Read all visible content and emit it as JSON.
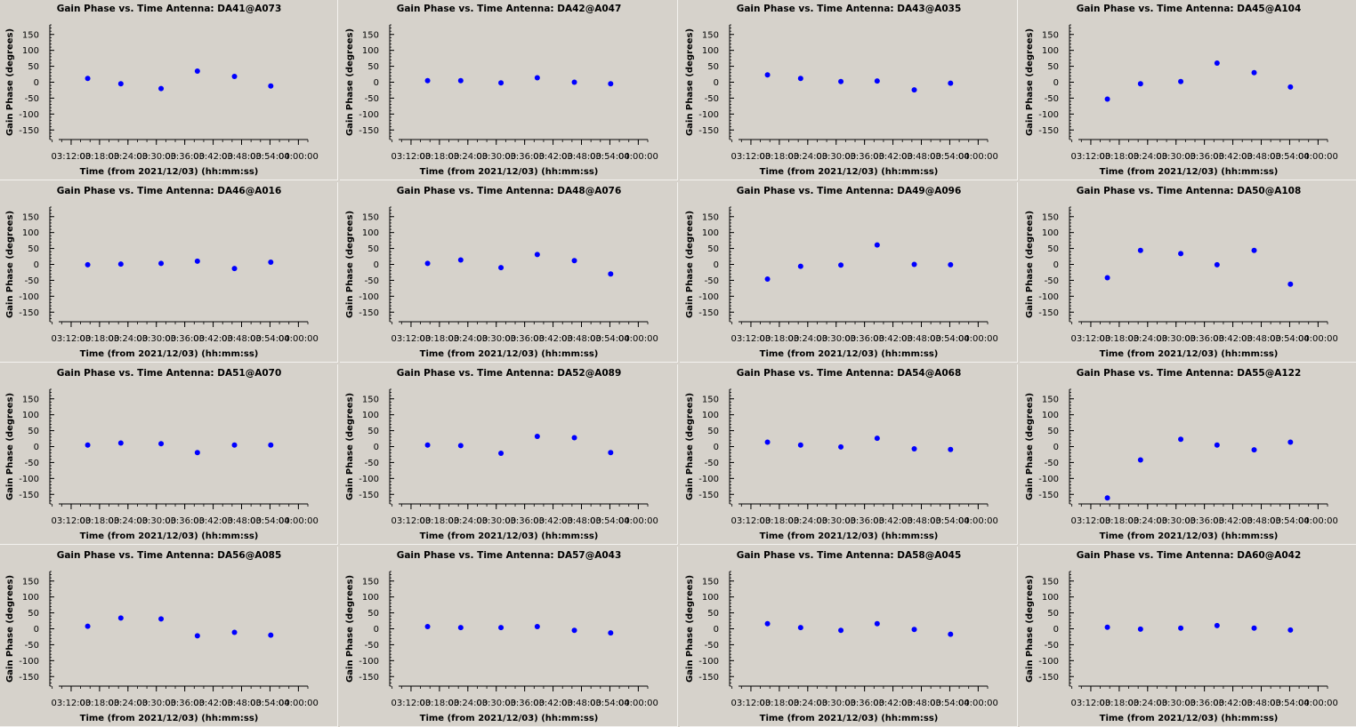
{
  "chart_data": [
    {
      "type": "scatter",
      "title": "Gain Phase vs. Time Antenna: DA41@A073",
      "xlabel": "Time (from 2021/12/03) (hh:mm:ss)",
      "ylabel": "Gain Phase (degrees)",
      "ylim": [
        -180,
        180
      ],
      "yticks": [
        150,
        100,
        50,
        0,
        -50,
        -100,
        -150
      ],
      "xlim": [
        "03:07:30",
        "04:02:00"
      ],
      "xticks": [
        "03:12:00",
        "03:18:00",
        "03:24:00",
        "03:30:00",
        "03:36:00",
        "03:42:00",
        "03:48:00",
        "03:54:00",
        "04:00:00"
      ],
      "grid": false,
      "marker_color": "#0000ff",
      "x": [
        "03:15:30",
        "03:22:30",
        "03:31:00",
        "03:38:40",
        "03:46:30",
        "03:54:10"
      ],
      "y": [
        12,
        -5,
        -20,
        35,
        18,
        -12
      ]
    },
    {
      "type": "scatter",
      "title": "Gain Phase vs. Time Antenna: DA42@A047",
      "xlabel": "Time (from 2021/12/03) (hh:mm:ss)",
      "ylabel": "Gain Phase (degrees)",
      "ylim": [
        -180,
        180
      ],
      "yticks": [
        150,
        100,
        50,
        0,
        -50,
        -100,
        -150
      ],
      "xlim": [
        "03:07:30",
        "04:02:00"
      ],
      "xticks": [
        "03:12:00",
        "03:18:00",
        "03:24:00",
        "03:30:00",
        "03:36:00",
        "03:42:00",
        "03:48:00",
        "03:54:00",
        "04:00:00"
      ],
      "grid": false,
      "marker_color": "#0000ff",
      "x": [
        "03:15:30",
        "03:22:30",
        "03:31:00",
        "03:38:40",
        "03:46:30",
        "03:54:10"
      ],
      "y": [
        5,
        5,
        -2,
        14,
        0,
        -5
      ]
    },
    {
      "type": "scatter",
      "title": "Gain Phase vs. Time Antenna: DA43@A035",
      "xlabel": "Time (from 2021/12/03) (hh:mm:ss)",
      "ylabel": "Gain Phase (degrees)",
      "ylim": [
        -180,
        180
      ],
      "yticks": [
        150,
        100,
        50,
        0,
        -50,
        -100,
        -150
      ],
      "xlim": [
        "03:07:30",
        "04:02:00"
      ],
      "xticks": [
        "03:12:00",
        "03:18:00",
        "03:24:00",
        "03:30:00",
        "03:36:00",
        "03:42:00",
        "03:48:00",
        "03:54:00",
        "04:00:00"
      ],
      "grid": false,
      "marker_color": "#0000ff",
      "x": [
        "03:15:30",
        "03:22:30",
        "03:31:00",
        "03:38:40",
        "03:46:30",
        "03:54:10"
      ],
      "y": [
        23,
        12,
        2,
        4,
        -24,
        -3
      ]
    },
    {
      "type": "scatter",
      "title": "Gain Phase vs. Time Antenna: DA45@A104",
      "xlabel": "Time (from 2021/12/03) (hh:mm:ss)",
      "ylabel": "Gain Phase (degrees)",
      "ylim": [
        -180,
        180
      ],
      "yticks": [
        150,
        100,
        50,
        0,
        -50,
        -100,
        -150
      ],
      "xlim": [
        "03:07:30",
        "04:02:00"
      ],
      "xticks": [
        "03:12:00",
        "03:18:00",
        "03:24:00",
        "03:30:00",
        "03:36:00",
        "03:42:00",
        "03:48:00",
        "03:54:00",
        "04:00:00"
      ],
      "grid": false,
      "marker_color": "#0000ff",
      "x": [
        "03:15:30",
        "03:22:30",
        "03:31:00",
        "03:38:40",
        "03:46:30",
        "03:54:10"
      ],
      "y": [
        -53,
        -5,
        2,
        60,
        30,
        -15
      ]
    },
    {
      "type": "scatter",
      "title": "Gain Phase vs. Time Antenna: DA46@A016",
      "xlabel": "Time (from 2021/12/03) (hh:mm:ss)",
      "ylabel": "Gain Phase (degrees)",
      "ylim": [
        -180,
        180
      ],
      "yticks": [
        150,
        100,
        50,
        0,
        -50,
        -100,
        -150
      ],
      "xlim": [
        "03:07:30",
        "04:02:00"
      ],
      "xticks": [
        "03:12:00",
        "03:18:00",
        "03:24:00",
        "03:30:00",
        "03:36:00",
        "03:42:00",
        "03:48:00",
        "03:54:00",
        "04:00:00"
      ],
      "grid": false,
      "marker_color": "#0000ff",
      "x": [
        "03:15:30",
        "03:22:30",
        "03:31:00",
        "03:38:40",
        "03:46:30",
        "03:54:10"
      ],
      "y": [
        -1,
        1,
        3,
        10,
        -13,
        7
      ]
    },
    {
      "type": "scatter",
      "title": "Gain Phase vs. Time Antenna: DA48@A076",
      "xlabel": "Time (from 2021/12/03) (hh:mm:ss)",
      "ylabel": "Gain Phase (degrees)",
      "ylim": [
        -180,
        180
      ],
      "yticks": [
        150,
        100,
        50,
        0,
        -50,
        -100,
        -150
      ],
      "xlim": [
        "03:07:30",
        "04:02:00"
      ],
      "xticks": [
        "03:12:00",
        "03:18:00",
        "03:24:00",
        "03:30:00",
        "03:36:00",
        "03:42:00",
        "03:48:00",
        "03:54:00",
        "04:00:00"
      ],
      "grid": false,
      "marker_color": "#0000ff",
      "x": [
        "03:15:30",
        "03:22:30",
        "03:31:00",
        "03:38:40",
        "03:46:30",
        "03:54:10"
      ],
      "y": [
        3,
        14,
        -10,
        31,
        12,
        -30
      ]
    },
    {
      "type": "scatter",
      "title": "Gain Phase vs. Time Antenna: DA49@A096",
      "xlabel": "Time (from 2021/12/03) (hh:mm:ss)",
      "ylabel": "Gain Phase (degrees)",
      "ylim": [
        -180,
        180
      ],
      "yticks": [
        150,
        100,
        50,
        0,
        -50,
        -100,
        -150
      ],
      "xlim": [
        "03:07:30",
        "04:02:00"
      ],
      "xticks": [
        "03:12:00",
        "03:18:00",
        "03:24:00",
        "03:30:00",
        "03:36:00",
        "03:42:00",
        "03:48:00",
        "03:54:00",
        "04:00:00"
      ],
      "grid": false,
      "marker_color": "#0000ff",
      "x": [
        "03:15:30",
        "03:22:30",
        "03:31:00",
        "03:38:40",
        "03:46:30",
        "03:54:10"
      ],
      "y": [
        -46,
        -6,
        -2,
        61,
        0,
        -1
      ]
    },
    {
      "type": "scatter",
      "title": "Gain Phase vs. Time Antenna: DA50@A108",
      "xlabel": "Time (from 2021/12/03) (hh:mm:ss)",
      "ylabel": "Gain Phase (degrees)",
      "ylim": [
        -180,
        180
      ],
      "yticks": [
        150,
        100,
        50,
        0,
        -50,
        -100,
        -150
      ],
      "xlim": [
        "03:07:30",
        "04:02:00"
      ],
      "xticks": [
        "03:12:00",
        "03:18:00",
        "03:24:00",
        "03:30:00",
        "03:36:00",
        "03:42:00",
        "03:48:00",
        "03:54:00",
        "04:00:00"
      ],
      "grid": false,
      "marker_color": "#0000ff",
      "x": [
        "03:15:30",
        "03:22:30",
        "03:31:00",
        "03:38:40",
        "03:46:30",
        "03:54:10"
      ],
      "y": [
        -42,
        44,
        34,
        -1,
        44,
        -62
      ]
    },
    {
      "type": "scatter",
      "title": "Gain Phase vs. Time Antenna: DA51@A070",
      "xlabel": "Time (from 2021/12/03) (hh:mm:ss)",
      "ylabel": "Gain Phase (degrees)",
      "ylim": [
        -180,
        180
      ],
      "yticks": [
        150,
        100,
        50,
        0,
        -50,
        -100,
        -150
      ],
      "xlim": [
        "03:07:30",
        "04:02:00"
      ],
      "xticks": [
        "03:12:00",
        "03:18:00",
        "03:24:00",
        "03:30:00",
        "03:36:00",
        "03:42:00",
        "03:48:00",
        "03:54:00",
        "04:00:00"
      ],
      "grid": false,
      "marker_color": "#0000ff",
      "x": [
        "03:15:30",
        "03:22:30",
        "03:31:00",
        "03:38:40",
        "03:46:30",
        "03:54:10"
      ],
      "y": [
        5,
        11,
        9,
        -19,
        5,
        5
      ]
    },
    {
      "type": "scatter",
      "title": "Gain Phase vs. Time Antenna: DA52@A089",
      "xlabel": "Time (from 2021/12/03) (hh:mm:ss)",
      "ylabel": "Gain Phase (degrees)",
      "ylim": [
        -180,
        180
      ],
      "yticks": [
        150,
        100,
        50,
        0,
        -50,
        -100,
        -150
      ],
      "xlim": [
        "03:07:30",
        "04:02:00"
      ],
      "xticks": [
        "03:12:00",
        "03:18:00",
        "03:24:00",
        "03:30:00",
        "03:36:00",
        "03:42:00",
        "03:48:00",
        "03:54:00",
        "04:00:00"
      ],
      "grid": false,
      "marker_color": "#0000ff",
      "x": [
        "03:15:30",
        "03:22:30",
        "03:31:00",
        "03:38:40",
        "03:46:30",
        "03:54:10"
      ],
      "y": [
        5,
        3,
        -21,
        32,
        28,
        -19
      ]
    },
    {
      "type": "scatter",
      "title": "Gain Phase vs. Time Antenna: DA54@A068",
      "xlabel": "Time (from 2021/12/03) (hh:mm:ss)",
      "ylabel": "Gain Phase (degrees)",
      "ylim": [
        -180,
        180
      ],
      "yticks": [
        150,
        100,
        50,
        0,
        -50,
        -100,
        -150
      ],
      "xlim": [
        "03:07:30",
        "04:02:00"
      ],
      "xticks": [
        "03:12:00",
        "03:18:00",
        "03:24:00",
        "03:30:00",
        "03:36:00",
        "03:42:00",
        "03:48:00",
        "03:54:00",
        "04:00:00"
      ],
      "grid": false,
      "marker_color": "#0000ff",
      "x": [
        "03:15:30",
        "03:22:30",
        "03:31:00",
        "03:38:40",
        "03:46:30",
        "03:54:10"
      ],
      "y": [
        14,
        5,
        -1,
        26,
        -7,
        -9
      ]
    },
    {
      "type": "scatter",
      "title": "Gain Phase vs. Time Antenna: DA55@A122",
      "xlabel": "Time (from 2021/12/03) (hh:mm:ss)",
      "ylabel": "Gain Phase (degrees)",
      "ylim": [
        -180,
        180
      ],
      "yticks": [
        150,
        100,
        50,
        0,
        -50,
        -100,
        -150
      ],
      "xlim": [
        "03:07:30",
        "04:02:00"
      ],
      "xticks": [
        "03:12:00",
        "03:18:00",
        "03:24:00",
        "03:30:00",
        "03:36:00",
        "03:42:00",
        "03:48:00",
        "03:54:00",
        "04:00:00"
      ],
      "grid": false,
      "marker_color": "#0000ff",
      "x": [
        "03:15:30",
        "03:22:30",
        "03:31:00",
        "03:38:40",
        "03:46:30",
        "03:54:10"
      ],
      "y": [
        -161,
        -42,
        23,
        5,
        -10,
        14
      ]
    },
    {
      "type": "scatter",
      "title": "Gain Phase vs. Time Antenna: DA56@A085",
      "xlabel": "Time (from 2021/12/03) (hh:mm:ss)",
      "ylabel": "Gain Phase (degrees)",
      "ylim": [
        -180,
        180
      ],
      "yticks": [
        150,
        100,
        50,
        0,
        -50,
        -100,
        -150
      ],
      "xlim": [
        "03:07:30",
        "04:02:00"
      ],
      "xticks": [
        "03:12:00",
        "03:18:00",
        "03:24:00",
        "03:30:00",
        "03:36:00",
        "03:42:00",
        "03:48:00",
        "03:54:00",
        "04:00:00"
      ],
      "grid": false,
      "marker_color": "#0000ff",
      "x": [
        "03:15:30",
        "03:22:30",
        "03:31:00",
        "03:38:40",
        "03:46:30",
        "03:54:10"
      ],
      "y": [
        8,
        34,
        31,
        -22,
        -11,
        -20
      ]
    },
    {
      "type": "scatter",
      "title": "Gain Phase vs. Time Antenna: DA57@A043",
      "xlabel": "Time (from 2021/12/03) (hh:mm:ss)",
      "ylabel": "Gain Phase (degrees)",
      "ylim": [
        -180,
        180
      ],
      "yticks": [
        150,
        100,
        50,
        0,
        -50,
        -100,
        -150
      ],
      "xlim": [
        "03:07:30",
        "04:02:00"
      ],
      "xticks": [
        "03:12:00",
        "03:18:00",
        "03:24:00",
        "03:30:00",
        "03:36:00",
        "03:42:00",
        "03:48:00",
        "03:54:00",
        "04:00:00"
      ],
      "grid": false,
      "marker_color": "#0000ff",
      "x": [
        "03:15:30",
        "03:22:30",
        "03:31:00",
        "03:38:40",
        "03:46:30",
        "03:54:10"
      ],
      "y": [
        7,
        4,
        4,
        7,
        -5,
        -13
      ]
    },
    {
      "type": "scatter",
      "title": "Gain Phase vs. Time Antenna: DA58@A045",
      "xlabel": "Time (from 2021/12/03) (hh:mm:ss)",
      "ylabel": "Gain Phase (degrees)",
      "ylim": [
        -180,
        180
      ],
      "yticks": [
        150,
        100,
        50,
        0,
        -50,
        -100,
        -150
      ],
      "xlim": [
        "03:07:30",
        "04:02:00"
      ],
      "xticks": [
        "03:12:00",
        "03:18:00",
        "03:24:00",
        "03:30:00",
        "03:36:00",
        "03:42:00",
        "03:48:00",
        "03:54:00",
        "04:00:00"
      ],
      "grid": false,
      "marker_color": "#0000ff",
      "x": [
        "03:15:30",
        "03:22:30",
        "03:31:00",
        "03:38:40",
        "03:46:30",
        "03:54:10"
      ],
      "y": [
        16,
        4,
        -5,
        16,
        -2,
        -17
      ]
    },
    {
      "type": "scatter",
      "title": "Gain Phase vs. Time Antenna: DA60@A042",
      "xlabel": "Time (from 2021/12/03) (hh:mm:ss)",
      "ylabel": "Gain Phase (degrees)",
      "ylim": [
        -180,
        180
      ],
      "yticks": [
        150,
        100,
        50,
        0,
        -50,
        -100,
        -150
      ],
      "xlim": [
        "03:07:30",
        "04:02:00"
      ],
      "xticks": [
        "03:12:00",
        "03:18:00",
        "03:24:00",
        "03:30:00",
        "03:36:00",
        "03:42:00",
        "03:48:00",
        "03:54:00",
        "04:00:00"
      ],
      "grid": false,
      "marker_color": "#0000ff",
      "x": [
        "03:15:30",
        "03:22:30",
        "03:31:00",
        "03:38:40",
        "03:46:30",
        "03:54:10"
      ],
      "y": [
        5,
        -1,
        2,
        10,
        2,
        -4
      ]
    }
  ]
}
